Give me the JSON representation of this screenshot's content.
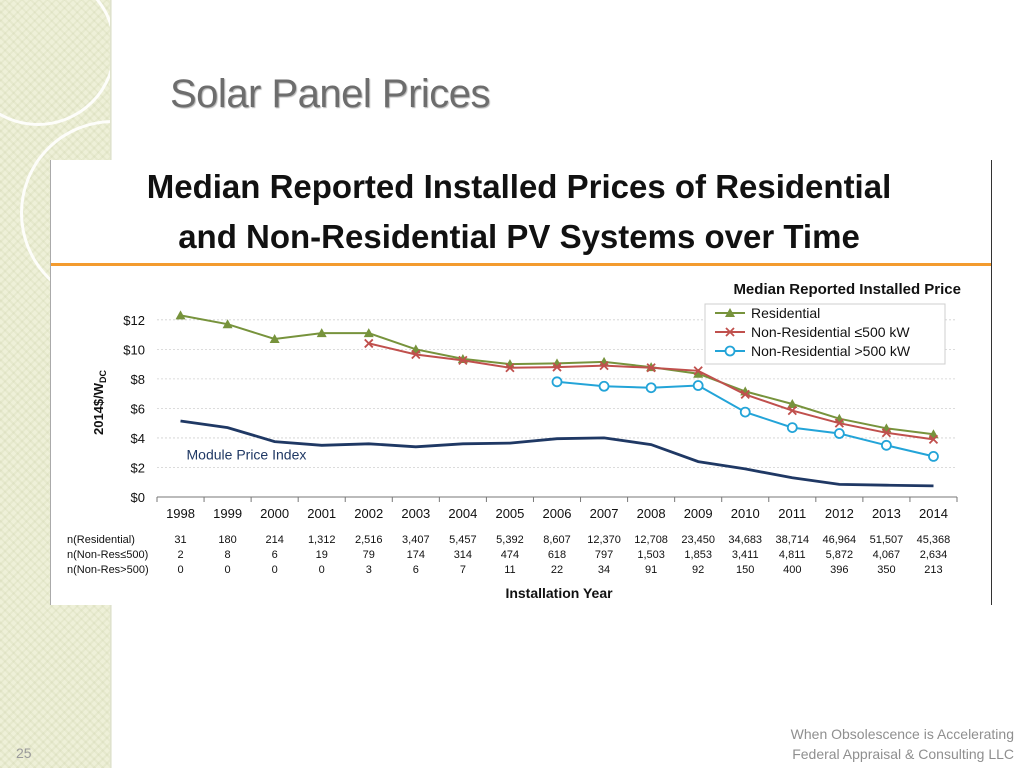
{
  "slide": {
    "title": "Solar Panel Prices",
    "page_number": "25",
    "footer_line1": "When Obsolescence is Accelerating",
    "footer_line2": "Federal Appraisal & Consulting LLC"
  },
  "colors": {
    "residential": "#77933c",
    "nonres_small": "#c0504d",
    "nonres_large": "#23a4d8",
    "module": "#1f3864",
    "accent_rule": "#f39b2e"
  },
  "chart_data": {
    "type": "line",
    "title_line1": "Median Reported Installed Prices of Residential",
    "title_line2": "and Non-Residential PV Systems over Time",
    "subtitle": "Median Reported Installed Price",
    "ylabel": "2014$/W",
    "ylabel_sub": "DC",
    "xlabel": "Installation Year",
    "ylim": [
      0,
      12.8
    ],
    "yticks": [
      0,
      2,
      4,
      6,
      8,
      10,
      12
    ],
    "ytick_labels": [
      "$0",
      "$2",
      "$4",
      "$6",
      "$8",
      "$10",
      "$12"
    ],
    "categories": [
      "1998",
      "1999",
      "2000",
      "2001",
      "2002",
      "2003",
      "2004",
      "2005",
      "2006",
      "2007",
      "2008",
      "2009",
      "2010",
      "2011",
      "2012",
      "2013",
      "2014"
    ],
    "series": [
      {
        "name": "Residential",
        "key": "residential",
        "marker": "triangle",
        "values": [
          12.3,
          11.7,
          10.7,
          11.1,
          11.1,
          10.0,
          9.35,
          9.0,
          9.05,
          9.15,
          8.8,
          8.35,
          7.15,
          6.3,
          5.3,
          4.65,
          4.25
        ]
      },
      {
        "name": "Non-Residential ≤500 kW",
        "key": "nonres_small",
        "marker": "x",
        "values": [
          null,
          null,
          null,
          null,
          10.4,
          9.65,
          9.25,
          8.75,
          8.8,
          8.9,
          8.75,
          8.55,
          6.95,
          5.85,
          5.0,
          4.35,
          3.9
        ]
      },
      {
        "name": "Non-Residential >500 kW",
        "key": "nonres_large",
        "marker": "circle",
        "values": [
          null,
          null,
          null,
          null,
          null,
          null,
          null,
          null,
          7.8,
          7.5,
          7.4,
          7.55,
          5.75,
          4.7,
          4.3,
          3.5,
          2.75
        ]
      },
      {
        "name": "Module Price Index",
        "key": "module",
        "marker": "none",
        "values": [
          5.15,
          4.7,
          3.75,
          3.5,
          3.6,
          3.4,
          3.6,
          3.65,
          3.95,
          4.0,
          3.55,
          2.4,
          1.9,
          1.3,
          0.85,
          0.8,
          0.75
        ]
      }
    ],
    "annotation": "Module Price Index",
    "count_rows": [
      {
        "label": "n(Residential)",
        "values": [
          "31",
          "180",
          "214",
          "1,312",
          "2,516",
          "3,407",
          "5,457",
          "5,392",
          "8,607",
          "12,370",
          "12,708",
          "23,450",
          "34,683",
          "38,714",
          "46,964",
          "51,507",
          "45,368"
        ]
      },
      {
        "label": "n(Non-Res≤500)",
        "values": [
          "2",
          "8",
          "6",
          "19",
          "79",
          "174",
          "314",
          "474",
          "618",
          "797",
          "1,503",
          "1,853",
          "3,411",
          "4,811",
          "5,872",
          "4,067",
          "2,634"
        ]
      },
      {
        "label": "n(Non-Res>500)",
        "values": [
          "0",
          "0",
          "0",
          "0",
          "3",
          "6",
          "7",
          "11",
          "22",
          "34",
          "91",
          "92",
          "150",
          "400",
          "396",
          "350",
          "213"
        ]
      }
    ],
    "grid": true,
    "legend_position": "top-right"
  }
}
